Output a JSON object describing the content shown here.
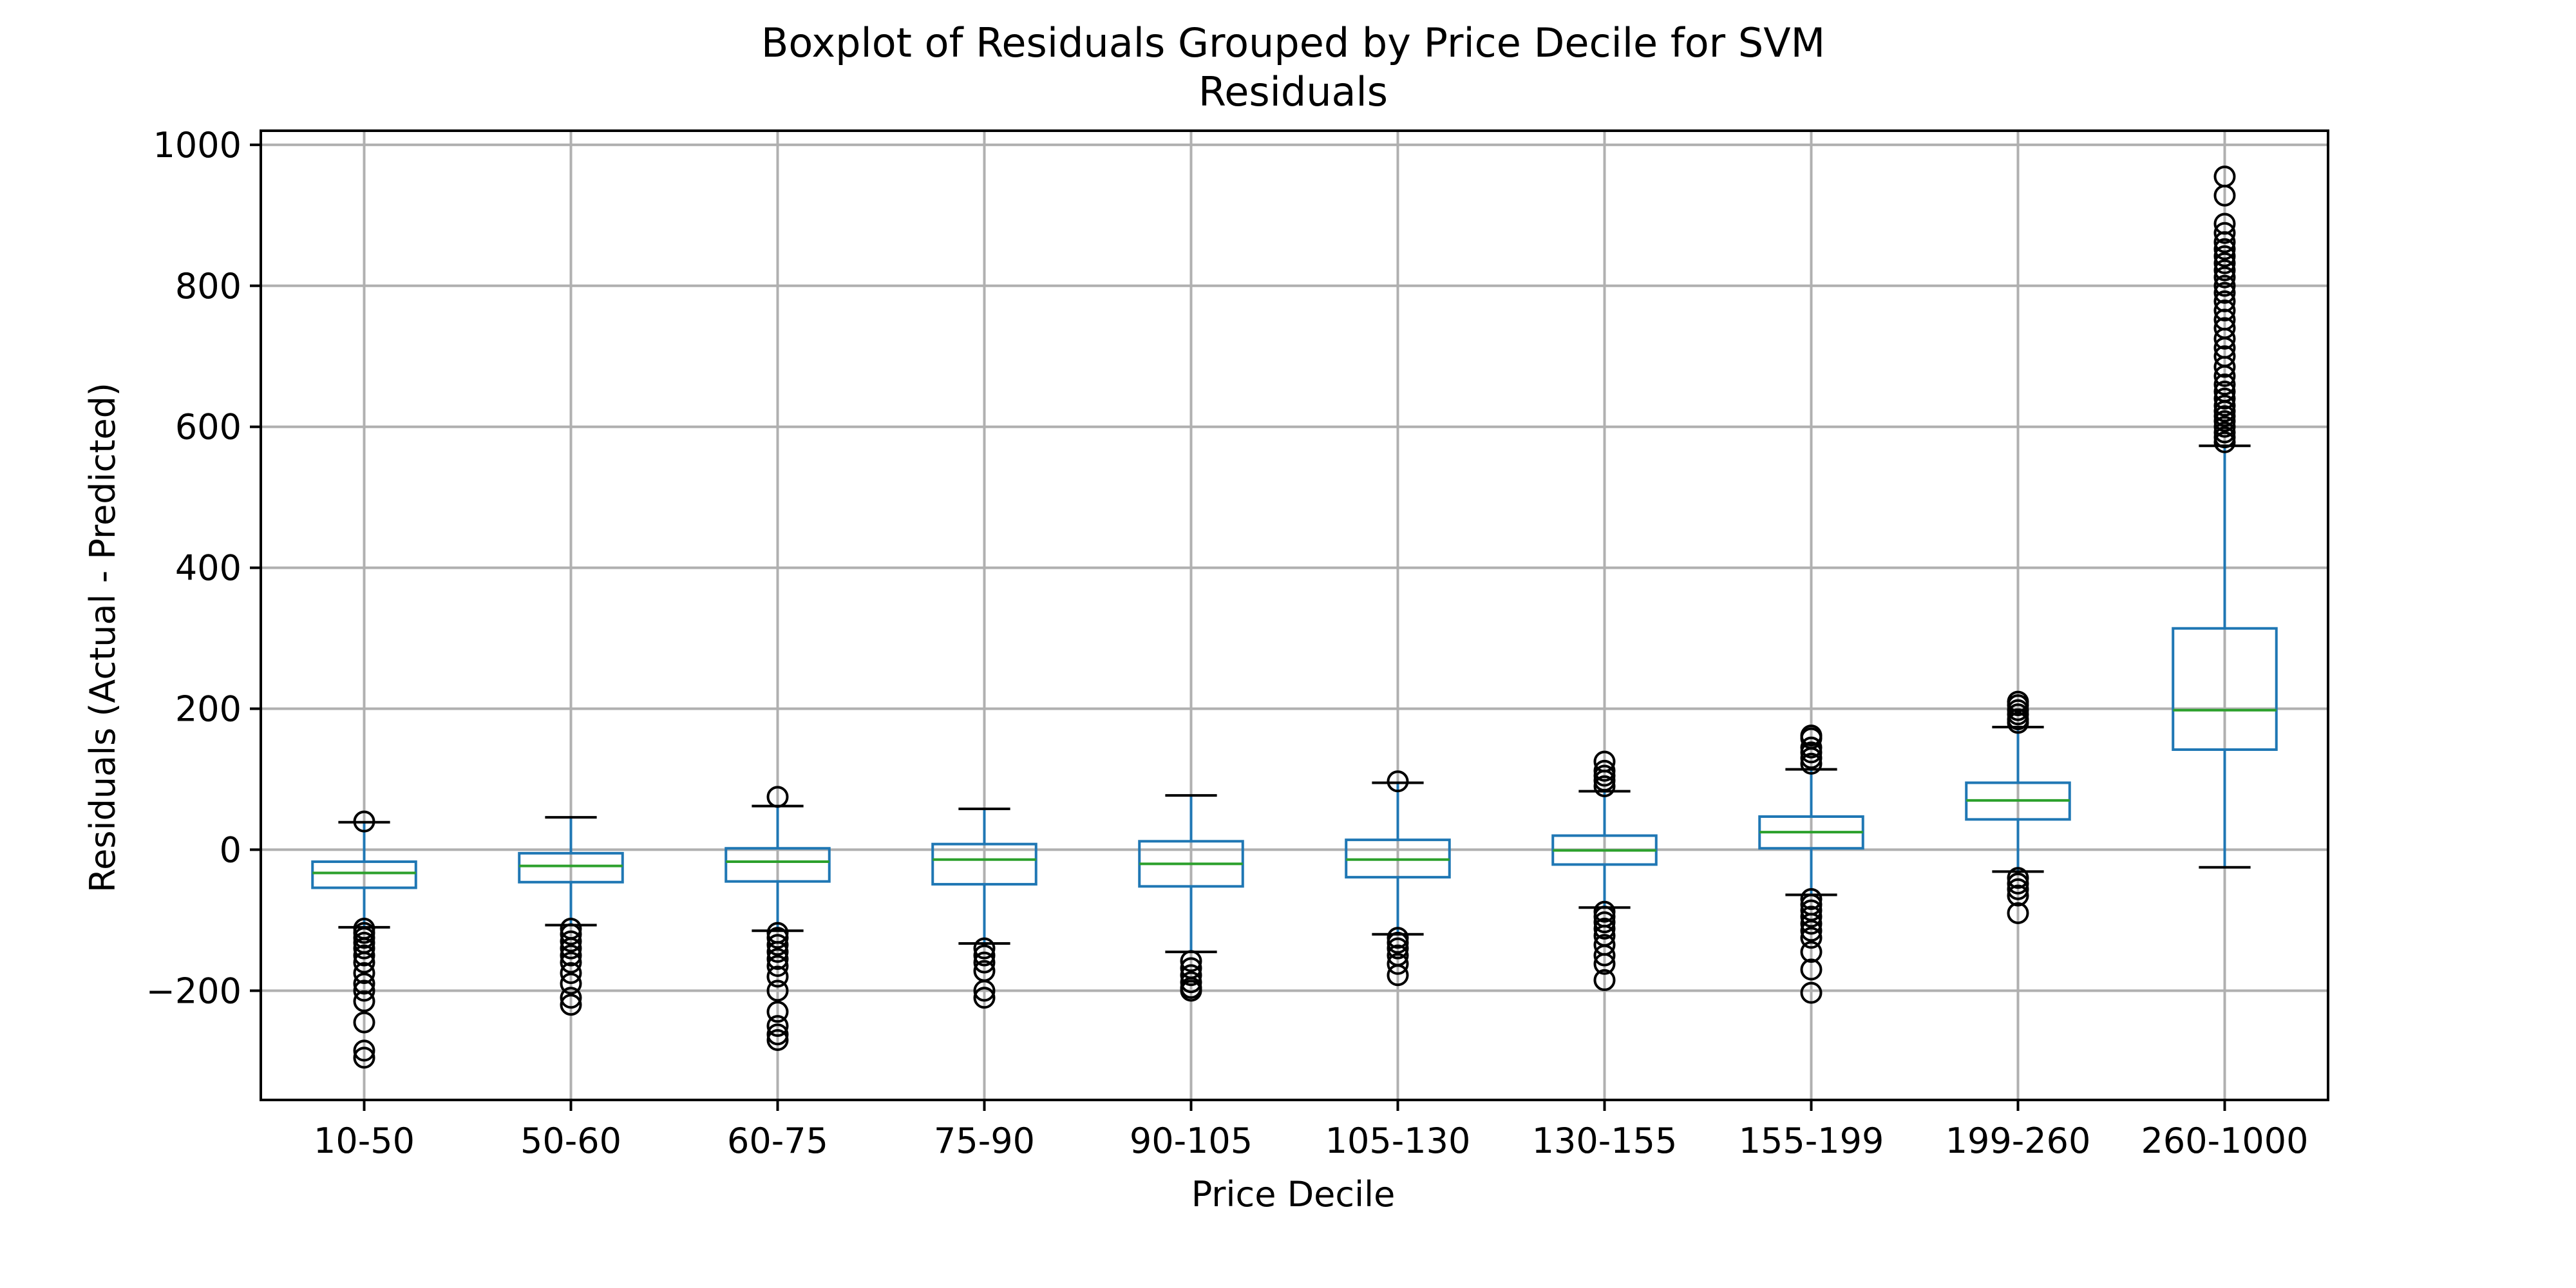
{
  "chart_data": {
    "type": "box",
    "title": "Boxplot of Residuals Grouped by Price Decile for SVM",
    "subtitle": "Residuals",
    "xlabel": "Price Decile",
    "ylabel": "Residuals (Actual - Predicted)",
    "ylim": [
      -355,
      1020
    ],
    "yticks": [
      -200,
      0,
      200,
      400,
      600,
      800,
      1000
    ],
    "ytick_labels": [
      "−200",
      "0",
      "200",
      "400",
      "600",
      "800",
      "1000"
    ],
    "grid": true,
    "colors": {
      "box": "#1f77b4",
      "median": "#2ca02c",
      "flier": "#000000",
      "grid": "#b0b0b0"
    },
    "categories": [
      "10-50",
      "50-60",
      "60-75",
      "75-90",
      "90-105",
      "105-130",
      "130-155",
      "155-199",
      "199-260",
      "260-1000"
    ],
    "boxes": [
      {
        "category": "10-50",
        "whisker_low": -110,
        "q1": -54,
        "median": -33,
        "q3": -17,
        "whisker_high": 39,
        "fliers": [
          40,
          -112,
          -118,
          -125,
          -132,
          -140,
          -150,
          -160,
          -175,
          -190,
          -200,
          -215,
          -245,
          -285,
          -295
        ]
      },
      {
        "category": "50-60",
        "whisker_low": -107,
        "q1": -46,
        "median": -23,
        "q3": -5,
        "whisker_high": 46,
        "fliers": [
          -112,
          -120,
          -130,
          -140,
          -150,
          -160,
          -175,
          -190,
          -210,
          -220
        ]
      },
      {
        "category": "60-75",
        "whisker_low": -115,
        "q1": -45,
        "median": -17,
        "q3": 2,
        "whisker_high": 62,
        "fliers": [
          75,
          -118,
          -125,
          -135,
          -145,
          -155,
          -165,
          -180,
          -200,
          -230,
          -250,
          -262,
          -270
        ]
      },
      {
        "category": "75-90",
        "whisker_low": -133,
        "q1": -49,
        "median": -14,
        "q3": 8,
        "whisker_high": 58,
        "fliers": [
          -140,
          -150,
          -160,
          -172,
          -200,
          -210
        ]
      },
      {
        "category": "90-105",
        "whisker_low": -145,
        "q1": -52,
        "median": -20,
        "q3": 12,
        "whisker_high": 77,
        "fliers": [
          -158,
          -168,
          -178,
          -188,
          -196,
          -200
        ]
      },
      {
        "category": "105-130",
        "whisker_low": -120,
        "q1": -39,
        "median": -14,
        "q3": 14,
        "whisker_high": 95,
        "fliers": [
          97,
          -125,
          -132,
          -140,
          -150,
          -162,
          -178
        ]
      },
      {
        "category": "130-155",
        "whisker_low": -82,
        "q1": -21,
        "median": -1,
        "q3": 20,
        "whisker_high": 83,
        "fliers": [
          90,
          98,
          105,
          112,
          125,
          -88,
          -95,
          -103,
          -112,
          -122,
          -135,
          -150,
          -162,
          -185
        ]
      },
      {
        "category": "155-199",
        "whisker_low": -64,
        "q1": 2,
        "median": 25,
        "q3": 47,
        "whisker_high": 114,
        "fliers": [
          122,
          130,
          138,
          145,
          158,
          162,
          -70,
          -78,
          -86,
          -95,
          -105,
          -115,
          -125,
          -145,
          -170,
          -203
        ]
      },
      {
        "category": "199-260",
        "whisker_low": -31,
        "q1": 43,
        "median": 70,
        "q3": 95,
        "whisker_high": 174,
        "fliers": [
          180,
          185,
          192,
          198,
          205,
          210,
          -40,
          -48,
          -56,
          -65,
          -90
        ]
      },
      {
        "category": "260-1000",
        "whisker_low": -25,
        "q1": 142,
        "median": 198,
        "q3": 314,
        "whisker_high": 573,
        "fliers": [
          578,
          585,
          592,
          600,
          608,
          615,
          622,
          630,
          640,
          650,
          660,
          672,
          685,
          700,
          712,
          725,
          740,
          752,
          765,
          778,
          790,
          800,
          812,
          822,
          832,
          842,
          852,
          862,
          875,
          888,
          928,
          955
        ]
      }
    ]
  }
}
